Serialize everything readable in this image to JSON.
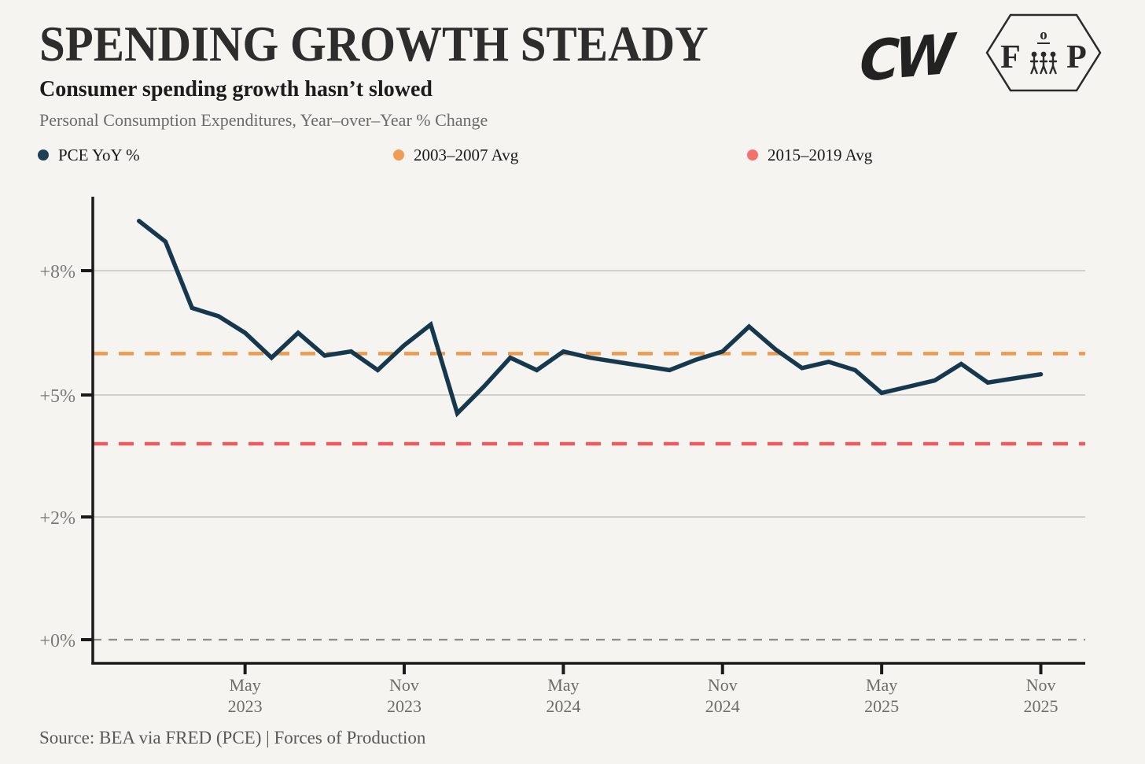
{
  "header": {
    "title": "SPENDING GROWTH STEADY",
    "subtitle": "Consumer spending growth hasn’t slowed",
    "description": "Personal Consumption Expenditures, Year–over–Year % Change",
    "cw_logo_text": "CW",
    "fop_logo": {
      "f": "F",
      "o": "o",
      "p": "P"
    }
  },
  "legend": [
    {
      "label": "PCE YoY %",
      "color": "#1d4256"
    },
    {
      "label": "2003–2007 Avg",
      "color": "#ef9d55"
    },
    {
      "label": "2015–2019 Avg",
      "color": "#f4716c"
    }
  ],
  "source": "Source: BEA via FRED (PCE) | Forces of Production",
  "chart_data": {
    "type": "line",
    "title": "SPENDING GROWTH STEADY",
    "subtitle": "Personal Consumption Expenditures, Year–over–Year % Change",
    "x": [
      "2023-01",
      "2023-02",
      "2023-03",
      "2023-04",
      "2023-05",
      "2023-06",
      "2023-07",
      "2023-08",
      "2023-09",
      "2023-10",
      "2023-11",
      "2023-12",
      "2024-01",
      "2024-02",
      "2024-03",
      "2024-04",
      "2024-05",
      "2024-06",
      "2024-07",
      "2024-08",
      "2024-09",
      "2024-10",
      "2024-11",
      "2024-12",
      "2025-01",
      "2025-02",
      "2025-03",
      "2025-04",
      "2025-05",
      "2025-06",
      "2025-07",
      "2025-08",
      "2025-09",
      "2025-10",
      "2025-11"
    ],
    "series": [
      {
        "name": "PCE YoY %",
        "color": "#16384e",
        "values": [
          9.2,
          8.7,
          7.1,
          6.9,
          6.5,
          5.9,
          6.5,
          5.95,
          6.05,
          5.6,
          6.2,
          6.7,
          4.55,
          5.2,
          5.9,
          5.6,
          6.05,
          5.9,
          5.8,
          5.7,
          5.6,
          5.85,
          6.05,
          6.65,
          6.1,
          5.65,
          5.8,
          5.6,
          5.05,
          5.2,
          5.35,
          5.75,
          5.3,
          5.4,
          5.5
        ]
      }
    ],
    "reference_lines": [
      {
        "name": "2003–2007 Avg",
        "value": 6.0,
        "color": "#ed9b51",
        "style": "dashed"
      },
      {
        "name": "2015–2019 Avg",
        "value": 3.8,
        "color": "#ee5a5e",
        "style": "dashed"
      },
      {
        "name": "baseline",
        "value": 0.0,
        "color": "#8e8c89",
        "style": "dashed"
      }
    ],
    "yticks": [
      {
        "value": 0,
        "label": "+0%"
      },
      {
        "value": 2,
        "label": "+2%"
      },
      {
        "value": 5,
        "label": "+5%"
      },
      {
        "value": 8,
        "label": "+8%"
      }
    ],
    "xticks": [
      {
        "index": 4,
        "line1": "May",
        "line2": "2023"
      },
      {
        "index": 10,
        "line1": "Nov",
        "line2": "2023"
      },
      {
        "index": 16,
        "line1": "May",
        "line2": "2024"
      },
      {
        "index": 22,
        "line1": "Nov",
        "line2": "2024"
      },
      {
        "index": 28,
        "line1": "May",
        "line2": "2025"
      },
      {
        "index": 34,
        "line1": "Nov",
        "line2": "2025"
      }
    ],
    "grid": "horizontal",
    "legend_position": "top",
    "axis_note": "y ticks evenly spaced at values 0,2,5,8"
  }
}
